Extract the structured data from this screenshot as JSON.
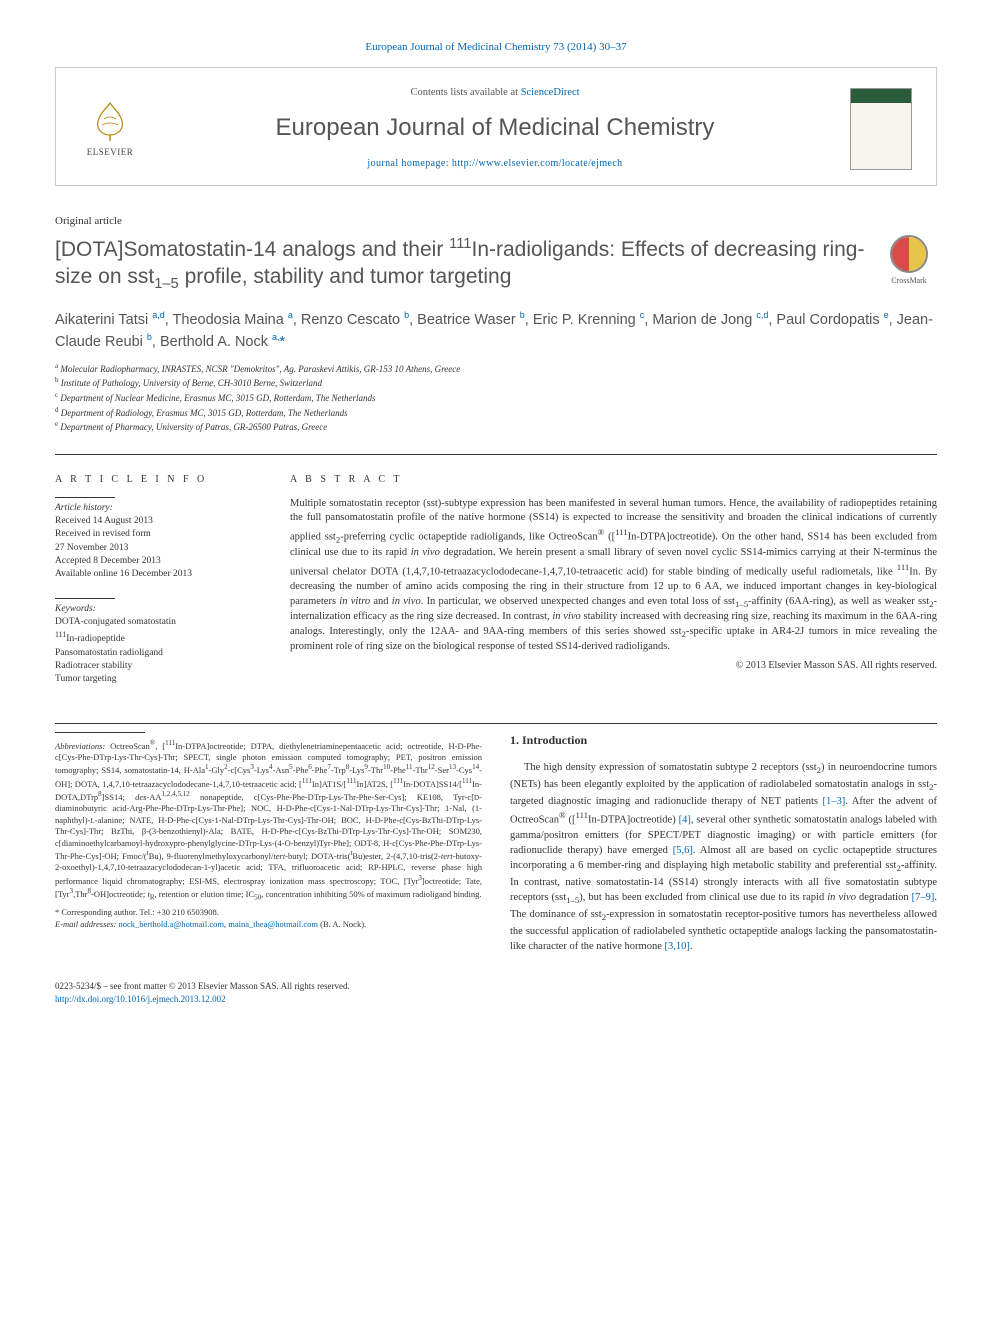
{
  "citation": "European Journal of Medicinal Chemistry 73 (2014) 30–37",
  "header": {
    "contents_prefix": "Contents lists available at ",
    "contents_link": "ScienceDirect",
    "journal_name": "European Journal of Medicinal Chemistry",
    "homepage_prefix": "journal homepage: ",
    "homepage_url": "http://www.elsevier.com/locate/ejmech",
    "publisher": "ELSEVIER"
  },
  "article_type": "Original article",
  "title_html": "[DOTA]Somatostatin-14 analogs and their <sup class='sup'>111</sup>In-radioligands: Effects of decreasing ring-size on sst<sub class='sub'>1–5</sub> profile, stability and tumor targeting",
  "crossmark_label": "CrossMark",
  "authors_html": "Aikaterini Tatsi <sup class='author-sup'>a,d</sup>, Theodosia Maina <sup class='author-sup'>a</sup>, Renzo Cescato <sup class='author-sup'>b</sup>, Beatrice Waser <sup class='author-sup'>b</sup>, Eric P. Krenning <sup class='author-sup'>c</sup>, Marion de Jong <sup class='author-sup'>c,d</sup>, Paul Cordopatis <sup class='author-sup'>e</sup>, Jean-Claude Reubi <sup class='author-sup'>b</sup>, Berthold A. Nock <sup class='author-sup'>a,</sup><a href='#'>*</a>",
  "affiliations": [
    "<sup class='aff-sup'>a</sup> Molecular Radiopharmacy, INRASTES, NCSR \"Demokritos\", Ag. Paraskevi Attikis, GR-153 10 Athens, Greece",
    "<sup class='aff-sup'>b</sup> Institute of Pathology, University of Berne, CH-3010 Berne, Switzerland",
    "<sup class='aff-sup'>c</sup> Department of Nuclear Medicine, Erasmus MC, 3015 GD, Rotterdam, The Netherlands",
    "<sup class='aff-sup'>d</sup> Department of Radiology, Erasmus MC, 3015 GD, Rotterdam, The Netherlands",
    "<sup class='aff-sup'>e</sup> Department of Pharmacy, University of Patras, GR-26500 Patras, Greece"
  ],
  "info": {
    "heading": "A R T I C L E   I N F O",
    "history_label": "Article history:",
    "history": [
      "Received 14 August 2013",
      "Received in revised form",
      "27 November 2013",
      "Accepted 8 December 2013",
      "Available online 16 December 2013"
    ],
    "keywords_label": "Keywords:",
    "keywords": [
      "DOTA-conjugated somatostatin",
      "<sup>111</sup>In-radiopeptide",
      "Pansomatostatin radioligand",
      "Radiotracer stability",
      "Tumor targeting"
    ]
  },
  "abstract": {
    "heading": "A B S T R A C T",
    "text_html": "Multiple somatostatin receptor (sst)-subtype expression has been manifested in several human tumors. Hence, the availability of radiopeptides retaining the full pansomatostatin profile of the native hormone (SS14) is expected to increase the sensitivity and broaden the clinical indications of currently applied sst<sub>2</sub>-preferring cyclic octapeptide radioligands, like OctreoScan<sup>®</sup> ([<sup>111</sup>In-DTPA]octreotide). On the other hand, SS14 has been excluded from clinical use due to its rapid <i>in vivo</i> degradation. We herein present a small library of seven novel cyclic SS14-mimics carrying at their N-terminus the universal chelator DOTA (1,4,7,10-tetraazacyclododecane-1,4,7,10-tetraacetic acid) for stable binding of medically useful radiometals, like <sup>111</sup>In. By decreasing the number of amino acids composing the ring in their structure from 12 up to 6 AA, we induced important changes in key-biological parameters <i>in vitro</i> and <i>in vivo</i>. In particular, we observed unexpected changes and even total loss of sst<sub>1–5</sub>-affinity (6AA-ring), as well as weaker sst<sub>2</sub>-internalization efficacy as the ring size decreased. In contrast, <i>in vivo</i> stability increased with decreasing ring size, reaching its maximum in the 6AA-ring analogs. Interestingly, only the 12AA- and 9AA-ring members of this series showed sst<sub>2</sub>-specific uptake in AR4-2J tumors in mice revealing the prominent role of ring size on the biological response of tested SS14-derived radioligands.",
    "copyright": "© 2013 Elsevier Masson SAS. All rights reserved."
  },
  "abbreviations_html": "<span class='em'>Abbreviations:</span> OctreoScan<sup>®</sup>, [<sup>111</sup>In-DTPA]octreotide; DTPA, diethylenetriaminepentaacetic acid; octreotide, H-D-Phe-c[Cys-Phe-DTrp-Lys-Thr-Cys]-Thr; SPECT, single photon emission computed tomography; PET, positron emission tomography; SS14, somatostatin-14, H-Ala<sup>1</sup>-Gly<sup>2</sup>-c[Cys<sup>3</sup>-Lys<sup>4</sup>-Asn<sup>5</sup>-Phe<sup>6</sup>-Phe<sup>7</sup>-Trp<sup>8</sup>-Lys<sup>9</sup>-Thr<sup>10</sup>-Phe<sup>11</sup>-Thr<sup>12</sup>-Ser<sup>13</sup>-Cys<sup>14</sup>-OH]; DOTA, 1,4,7,10-tetraazacyclododecane-1,4,7,10-tetraacetic acid; [<sup>111</sup>In]AT1S/[<sup>111</sup>In]AT2S, [<sup>111</sup>In-DOTA]SS14/[<sup>111</sup>In-DOTA,DTrp<sup>8</sup>]SS14; <i>des</i>-AA<sup>1,2,4,5,12</sup> nonapeptide, c[Cys-Phe-Phe-DTrp-Lys-Thr-Phe-Ser-Cys]; KE108, Tyr-c[<small>D</small>-diaminobutyric acid-Arg-Phe-Phe-DTrp-Lys-Thr-Phe]; NOC, H-D-Phe-c[Cys-1-Nal-DTrp-Lys-Thr-Cys]-Thr; 1-Nal, (1-naphthyl)-<small>L</small>-alanine; NATE, H-D-Phe-c[Cys-1-Nal-DTrp-Lys-Thr-Cys]-Thr-OH; BOC, H-D-Phe-c[Cys-BzThi-DTrp-Lys-Thr-Cys]-Thr; BzThi, β-(3-benzothienyl)-Ala; BATE, H-D-Phe-c[Cys-BzThi-DTrp-Lys-Thr-Cys]-Thr-OH; SOM230, c[diaminoethylcarbamoyl-hydroxypro-phenylglycine-DTrp-Lys-(4-O-benzyl)Tyr-Phe]; ODT-8, H-c[Cys-Phe-Phe-DTrp-Lys-Thr-Phe-Cys]-OH; Fmoc/(<sup>t</sup>Bu), 9-fluorenylmethyloxycarbonyl/<i>tert</i>-butyl; DOTA-tris(<sup>t</sup>Bu)ester, 2-(4,7,10-tris(2-<i>tert</i>-butoxy-2-oxoethyl)-1,4,7,10-tetraazacyclododecan-1-yl)acetic acid; TFA, trifluoroacetic acid; RP-HPLC, reverse phase high performance liquid chromatography; ESI-MS, electrospray ionization mass spectroscopy; TOC, [Tyr<sup>3</sup>]octreotide; Tate, [Tyr<sup>3</sup>,Thr<sup>8</sup>-OH]octreotide; <i>t</i><sub>R</sub>, retention or elution time; IC<sub>50</sub>, concentration inhibiting 50% of maximum radioligand binding.",
  "corresponding": {
    "label": "* Corresponding author. Tel.: +30 210 6503908.",
    "email_label": "E-mail addresses:",
    "emails_html": "<a href='#'>nock_berthold.a@hotmail.com</a>, <a href='#'>maina_thea@hotmail.com</a> (B. A. Nock)."
  },
  "introduction": {
    "heading": "1. Introduction",
    "text_html": "The high density expression of somatostatin subtype 2 receptors (sst<sub>2</sub>) in neuroendocrine tumors (NETs) has been elegantly exploited by the application of radiolabeled somatostatin analogs in sst<sub>2</sub>-targeted diagnostic imaging and radionuclide therapy of NET patients <a href='#'>[1–3]</a>. After the advent of OctreoScan<sup>®</sup> ([<sup>111</sup>In-DTPA]octreotide) <a href='#'>[4]</a>, several other synthetic somatostatin analogs labeled with gamma/positron emitters (for SPECT/PET diagnostic imaging) or with particle emitters (for radionuclide therapy) have emerged <a href='#'>[5,6]</a>. Almost all are based on cyclic octapeptide structures incorporating a 6 member-ring and displaying high metabolic stability and preferential sst<sub>2</sub>-affinity. In contrast, native somatostatin-14 (SS14) strongly interacts with all five somatostatin subtype receptors (sst<sub>1–5</sub>), but has been excluded from clinical use due to its rapid <i>in vivo</i> degradation <a href='#'>[7–9]</a>. The dominance of sst<sub>2</sub>-expression in somatostatin receptor-positive tumors has nevertheless allowed the successful application of radiolabeled synthetic octapeptide analogs lacking the pansomatostatin-like character of the native hormone <a href='#'>[3,10]</a>."
  },
  "footer": {
    "line1": "0223-5234/$ – see front matter © 2013 Elsevier Masson SAS. All rights reserved.",
    "doi": "http://dx.doi.org/10.1016/j.ejmech.2013.12.002"
  },
  "colors": {
    "link": "#0066b3",
    "heading_gray": "#555555",
    "text": "#333333",
    "crossmark_red": "#d94a4a",
    "crossmark_yellow": "#e8c44a",
    "cover_green": "#2a5c3a"
  }
}
